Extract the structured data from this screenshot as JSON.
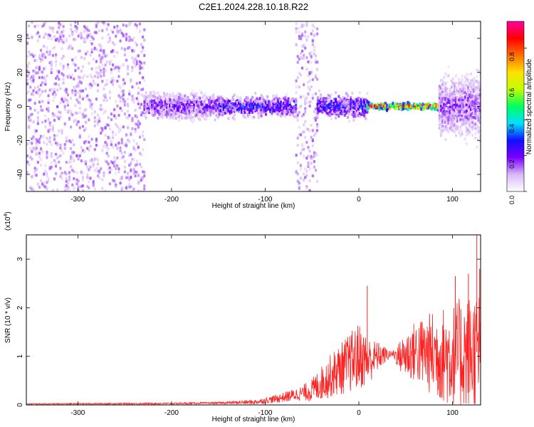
{
  "figure": {
    "title": "C2E1.2024.228.10.18.R22"
  },
  "chart_data": [
    {
      "type": "heatmap",
      "xlabel": "Height of straight line (km)",
      "ylabel": "Frequency (Hz)",
      "xlim": [
        -355,
        130
      ],
      "ylim": [
        -50,
        50
      ],
      "xticks": [
        -300,
        -200,
        -100,
        0,
        100
      ],
      "yticks": [
        -40,
        -20,
        0,
        20,
        40
      ],
      "xtick_labels": [
        "-300",
        "-200",
        "-100",
        "0",
        "100"
      ],
      "ytick_labels": [
        "-40",
        "-20",
        "0",
        "20",
        "40"
      ],
      "colorbar": {
        "label": "Normalized spectral amplitude",
        "range": [
          0,
          0.95
        ],
        "ticks": [
          0,
          0.2,
          0.4,
          0.6,
          0.8
        ],
        "tick_labels": [
          "0.0",
          "0.2",
          "0.4",
          "0.6",
          "0.8"
        ],
        "colormap": [
          "#ffffff",
          "#d8b8f8",
          "#7a00ff",
          "#1010ff",
          "#00e0ff",
          "#00ff60",
          "#c0ff00",
          "#ffe000",
          "#ff7000",
          "#ff0000",
          "#ff00a0"
        ]
      },
      "regions": [
        {
          "x": [
            -355,
            -230
          ],
          "freq_spread": 50,
          "amplitude": 0.12
        },
        {
          "x": [
            -230,
            -150
          ],
          "freq_spread": 8,
          "amplitude": 0.18
        },
        {
          "x": [
            -150,
            -68
          ],
          "freq_spread": 6,
          "amplitude": 0.25
        },
        {
          "x": [
            -68,
            -45
          ],
          "freq_spread": 50,
          "amplitude": 0.12
        },
        {
          "x": [
            -45,
            8
          ],
          "freq_spread": 7,
          "amplitude": 0.25
        },
        {
          "x": [
            8,
            85
          ],
          "freq_spread": 2,
          "amplitude": 0.85
        },
        {
          "x": [
            85,
            130
          ],
          "freq_spread": 18,
          "amplitude": 0.15
        }
      ]
    },
    {
      "type": "line",
      "xlabel": "Height of straight line (km)",
      "ylabel": "SNR (10 * v/v)",
      "scale_label": "(x10",
      "scale_exp": "4",
      "scale_close": ")",
      "xlim": [
        -355,
        130
      ],
      "ylim": [
        0,
        3.5
      ],
      "xticks": [
        -300,
        -200,
        -100,
        0,
        100
      ],
      "yticks": [
        0,
        1,
        2,
        3
      ],
      "xtick_labels": [
        "-300",
        "-200",
        "-100",
        "0",
        "100"
      ],
      "ytick_labels": [
        "0",
        "1",
        "2",
        "3"
      ],
      "series": [
        {
          "color": "#ff2020",
          "envelope": [
            {
              "x": -355,
              "y": 0.02
            },
            {
              "x": -200,
              "y": 0.03
            },
            {
              "x": -150,
              "y": 0.04
            },
            {
              "x": -110,
              "y": 0.06
            },
            {
              "x": -90,
              "y": 0.12
            },
            {
              "x": -70,
              "y": 0.2
            },
            {
              "x": -50,
              "y": 0.3
            },
            {
              "x": -30,
              "y": 0.6
            },
            {
              "x": -15,
              "y": 0.8
            },
            {
              "x": 0,
              "y": 1.0
            },
            {
              "x": 10,
              "y": 0.9
            },
            {
              "x": 20,
              "y": 1.0
            },
            {
              "x": 35,
              "y": 1.05
            },
            {
              "x": 45,
              "y": 1.0
            },
            {
              "x": 60,
              "y": 1.1
            },
            {
              "x": 80,
              "y": 1.05
            },
            {
              "x": 100,
              "y": 1.0
            },
            {
              "x": 115,
              "y": 1.05
            },
            {
              "x": 130,
              "y": 1.1
            }
          ],
          "noise": [
            {
              "x": -355,
              "y": 0.01
            },
            {
              "x": -150,
              "y": 0.02
            },
            {
              "x": -100,
              "y": 0.06
            },
            {
              "x": -60,
              "y": 0.15
            },
            {
              "x": -30,
              "y": 0.45
            },
            {
              "x": 0,
              "y": 0.7
            },
            {
              "x": 15,
              "y": 0.4
            },
            {
              "x": 35,
              "y": 0.05
            },
            {
              "x": 50,
              "y": 0.5
            },
            {
              "x": 80,
              "y": 0.9
            },
            {
              "x": 110,
              "y": 1.2
            },
            {
              "x": 130,
              "y": 1.3
            }
          ],
          "peaks": [
            {
              "x": 9,
              "y": 2.45
            },
            {
              "x": 103,
              "y": 2.65
            },
            {
              "x": 117,
              "y": 2.7
            },
            {
              "x": 126,
              "y": 3.5
            },
            {
              "x": 129,
              "y": 2.8
            }
          ]
        }
      ]
    }
  ]
}
